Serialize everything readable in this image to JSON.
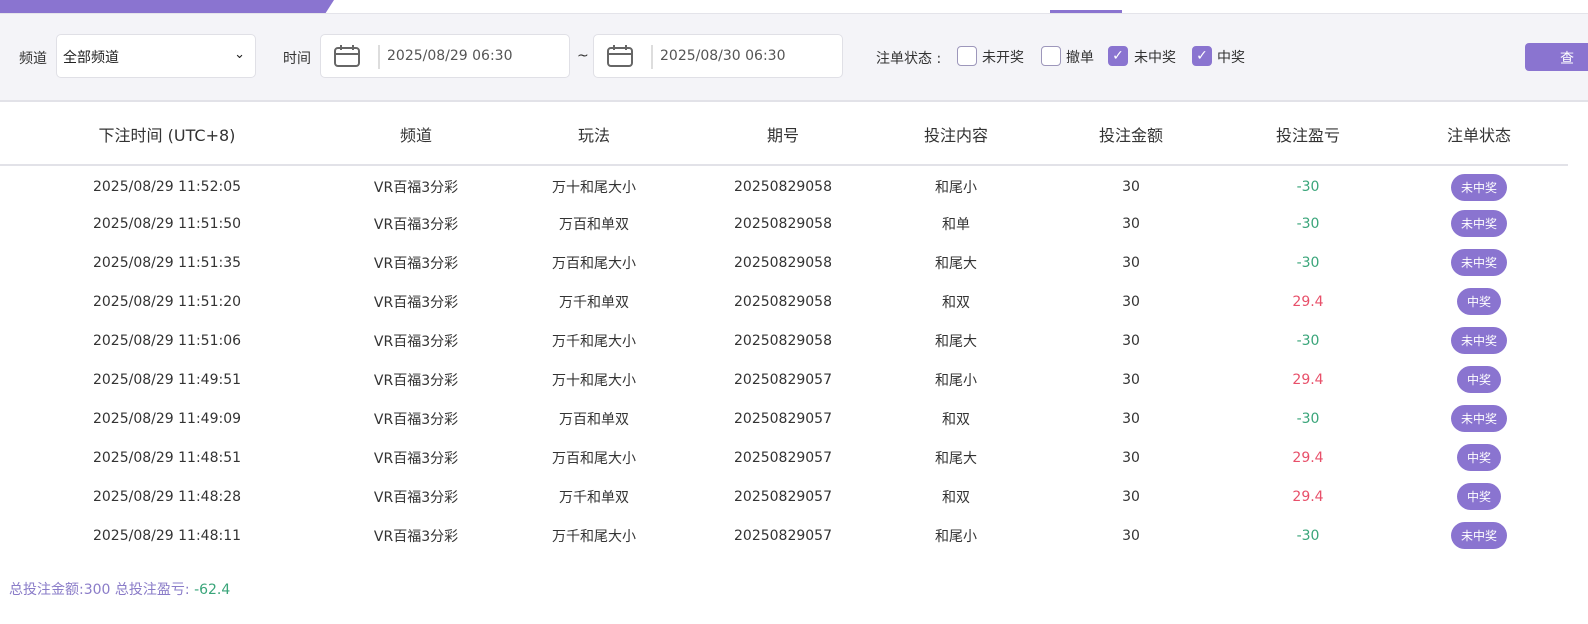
{
  "filters": {
    "channel_label": "频道",
    "channel_value": "全部频道",
    "time_label": "时间",
    "start": "2025/08/29 06:30",
    "tilde": "~",
    "end": "2025/08/30 06:30",
    "status_label": "注单状态 :",
    "statuses": [
      {
        "label": "未开奖",
        "checked": false
      },
      {
        "label": "撤单",
        "checked": false
      },
      {
        "label": "未中奖",
        "checked": true
      },
      {
        "label": "中奖",
        "checked": true
      }
    ],
    "query_label": "查"
  },
  "table": {
    "headers": [
      "下注时间 (UTC+8)",
      "频道",
      "玩法",
      "期号",
      "投注内容",
      "投注金额",
      "投注盈亏",
      "注单状态"
    ],
    "rows": [
      [
        "2025/08/29 11:52:05",
        "VR百福3分彩",
        "万十和尾大小",
        "20250829058",
        "和尾小",
        "30",
        "-30",
        "未中奖"
      ],
      [
        "2025/08/29 11:51:50",
        "VR百福3分彩",
        "万百和单双",
        "20250829058",
        "和单",
        "30",
        "-30",
        "未中奖"
      ],
      [
        "2025/08/29 11:51:35",
        "VR百福3分彩",
        "万百和尾大小",
        "20250829058",
        "和尾大",
        "30",
        "-30",
        "未中奖"
      ],
      [
        "2025/08/29 11:51:20",
        "VR百福3分彩",
        "万千和单双",
        "20250829058",
        "和双",
        "30",
        "29.4",
        "中奖"
      ],
      [
        "2025/08/29 11:51:06",
        "VR百福3分彩",
        "万千和尾大小",
        "20250829058",
        "和尾大",
        "30",
        "-30",
        "未中奖"
      ],
      [
        "2025/08/29 11:49:51",
        "VR百福3分彩",
        "万十和尾大小",
        "20250829057",
        "和尾小",
        "30",
        "29.4",
        "中奖"
      ],
      [
        "2025/08/29 11:49:09",
        "VR百福3分彩",
        "万百和单双",
        "20250829057",
        "和双",
        "30",
        "-30",
        "未中奖"
      ],
      [
        "2025/08/29 11:48:51",
        "VR百福3分彩",
        "万百和尾大小",
        "20250829057",
        "和尾大",
        "30",
        "29.4",
        "中奖"
      ],
      [
        "2025/08/29 11:48:28",
        "VR百福3分彩",
        "万千和单双",
        "20250829057",
        "和双",
        "30",
        "29.4",
        "中奖"
      ],
      [
        "2025/08/29 11:48:11",
        "VR百福3分彩",
        "万千和尾大小",
        "20250829057",
        "和尾小",
        "30",
        "-30",
        "未中奖"
      ]
    ]
  },
  "summary": {
    "amount_label": "总投注金额:300 总投注盈亏:",
    "profit": "-62.4"
  },
  "colors": {
    "accent": "#8a74d0",
    "loss": "#3aa57a",
    "win": "#e8506a"
  }
}
